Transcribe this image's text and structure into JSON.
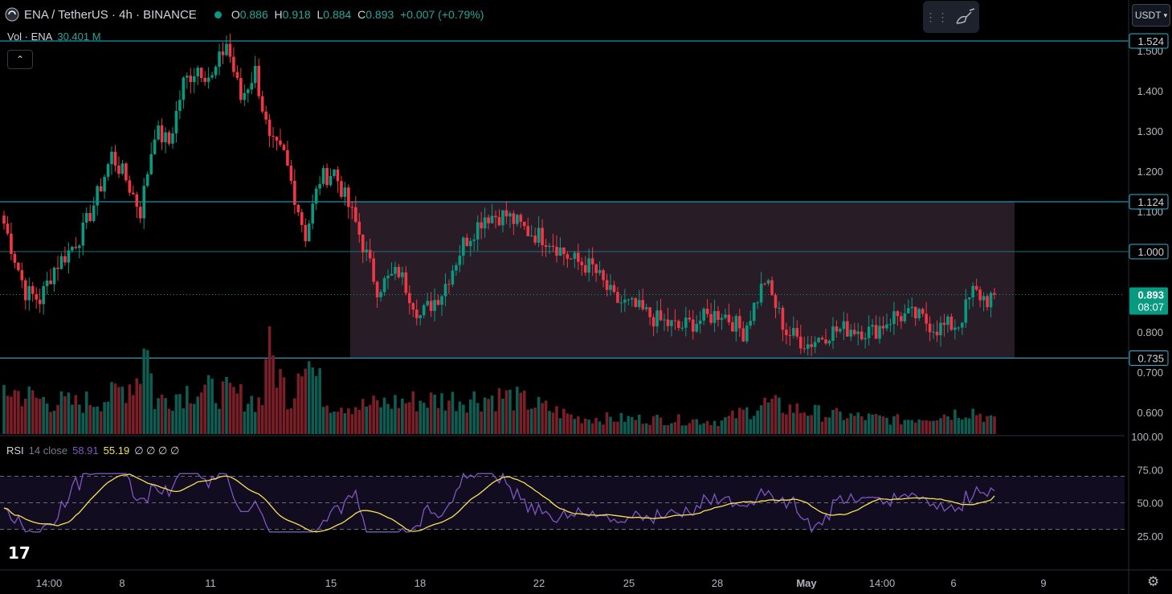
{
  "header": {
    "symbol": "ENA / TetherUS · 4h · BINANCE",
    "open_label": "O",
    "open": "0.886",
    "high_label": "H",
    "high": "0.918",
    "low_label": "L",
    "low": "0.884",
    "close_label": "C",
    "close": "0.893",
    "change": "+0.007 (+0.79%)"
  },
  "volume_legend": {
    "label": "Vol · ENA",
    "value": "30.401 M"
  },
  "currency_button": "USDT",
  "rsi_legend": {
    "label": "RSI",
    "settings": "14 close",
    "rsi_value": "58.91",
    "ma_value": "55.19",
    "extra": "∅ ∅ ∅ ∅"
  },
  "colors": {
    "up": "#089981",
    "down": "#f23645",
    "line": "#22b8d4",
    "rsi": "#7e57c2",
    "rsi_ma": "#f7e154",
    "range_box": "#2a1f28"
  },
  "chart_data": {
    "type": "candlestick",
    "timeframe": "4h",
    "price_axis_ticks": [
      "1.500",
      "1.400",
      "1.300",
      "1.200",
      "1.100",
      "1.000",
      "0.900",
      "0.800",
      "0.700",
      "0.600"
    ],
    "price_tick_values": [
      1.5,
      1.4,
      1.3,
      1.2,
      1.1,
      1.0,
      0.9,
      0.8,
      0.7,
      0.6
    ],
    "horizontal_levels": [
      {
        "value": 1.524,
        "label": "1.524"
      },
      {
        "value": 1.124,
        "label": "1.124"
      },
      {
        "value": 1.0,
        "label": "1.000"
      },
      {
        "value": 0.735,
        "label": "0.735"
      }
    ],
    "current_price": {
      "value": 0.893,
      "label": "0.893",
      "countdown": "08:07"
    },
    "x_axis_labels": [
      "14:00",
      "8",
      "11",
      "15",
      "18",
      "22",
      "25",
      "28",
      "May",
      "14:00",
      "6",
      "9"
    ],
    "range_box": {
      "top": 1.124,
      "bottom": 0.735,
      "start_tick": "15",
      "end_tick": "6"
    },
    "price_anchors": [
      [
        0,
        1.07
      ],
      [
        6,
        0.9
      ],
      [
        10,
        0.88
      ],
      [
        14,
        0.96
      ],
      [
        18,
        1.0
      ],
      [
        22,
        1.05
      ],
      [
        26,
        1.14
      ],
      [
        30,
        1.24
      ],
      [
        34,
        1.18
      ],
      [
        38,
        1.1
      ],
      [
        42,
        1.3
      ],
      [
        46,
        1.27
      ],
      [
        50,
        1.42
      ],
      [
        54,
        1.46
      ],
      [
        58,
        1.43
      ],
      [
        62,
        1.52
      ],
      [
        66,
        1.38
      ],
      [
        70,
        1.45
      ],
      [
        74,
        1.27
      ],
      [
        78,
        1.24
      ],
      [
        84,
        1.04
      ],
      [
        88,
        1.18
      ],
      [
        92,
        1.2
      ],
      [
        98,
        1.07
      ],
      [
        104,
        0.91
      ],
      [
        110,
        0.95
      ],
      [
        116,
        0.84
      ],
      [
        122,
        0.9
      ],
      [
        128,
        1.02
      ],
      [
        134,
        1.09
      ],
      [
        140,
        1.09
      ],
      [
        146,
        1.05
      ],
      [
        152,
        1.03
      ],
      [
        158,
        0.98
      ],
      [
        164,
        0.96
      ],
      [
        170,
        0.88
      ],
      [
        176,
        0.86
      ],
      [
        182,
        0.83
      ],
      [
        188,
        0.81
      ],
      [
        194,
        0.83
      ],
      [
        200,
        0.85
      ],
      [
        206,
        0.8
      ],
      [
        212,
        0.93
      ],
      [
        218,
        0.8
      ],
      [
        224,
        0.77
      ],
      [
        230,
        0.8
      ],
      [
        236,
        0.81
      ],
      [
        242,
        0.8
      ],
      [
        248,
        0.84
      ],
      [
        254,
        0.84
      ],
      [
        260,
        0.81
      ],
      [
        266,
        0.82
      ],
      [
        270,
        0.9
      ],
      [
        274,
        0.88
      ],
      [
        276,
        0.893
      ]
    ],
    "volume_anchors": [
      [
        0,
        0.42
      ],
      [
        10,
        0.32
      ],
      [
        20,
        0.28
      ],
      [
        30,
        0.35
      ],
      [
        38,
        0.55
      ],
      [
        39,
        1.0
      ],
      [
        42,
        0.3
      ],
      [
        52,
        0.42
      ],
      [
        62,
        0.38
      ],
      [
        72,
        0.3
      ],
      [
        73,
        0.83
      ],
      [
        80,
        0.3
      ],
      [
        83,
        0.83
      ],
      [
        90,
        0.3
      ],
      [
        100,
        0.26
      ],
      [
        110,
        0.3
      ],
      [
        140,
        0.35
      ],
      [
        160,
        0.15
      ],
      [
        180,
        0.14
      ],
      [
        200,
        0.12
      ],
      [
        212,
        0.28
      ],
      [
        230,
        0.18
      ],
      [
        250,
        0.13
      ],
      [
        270,
        0.22
      ],
      [
        276,
        0.12
      ]
    ],
    "rsi": {
      "period": 14,
      "source": "close",
      "last_value": 58.91,
      "ma_last_value": 55.19,
      "axis_ticks": [
        "100.00",
        "75.00",
        "50.00",
        "25.00"
      ],
      "bands": [
        70,
        50,
        30
      ]
    }
  }
}
